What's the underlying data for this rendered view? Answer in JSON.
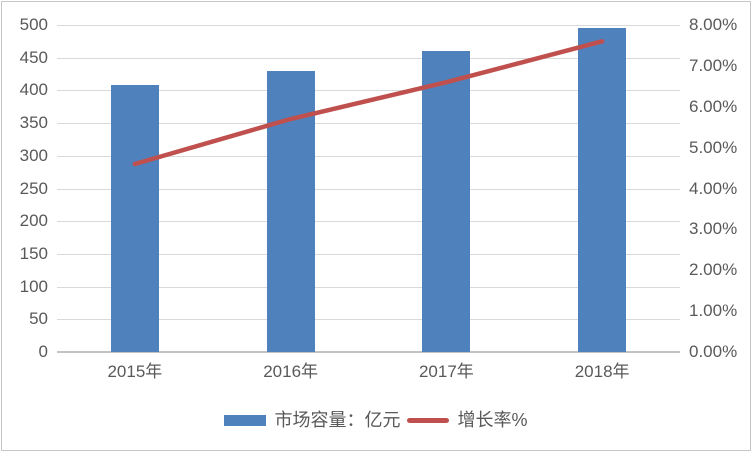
{
  "chart_data": {
    "type": "bar",
    "subtype": "bar-line-combo",
    "title": "",
    "categories": [
      "2015年",
      "2016年",
      "2017年",
      "2018年"
    ],
    "series": [
      {
        "name": "市场容量：亿元",
        "type": "bar",
        "axis": "left",
        "color": "#4F81BD",
        "values": [
          408,
          430,
          460,
          495
        ]
      },
      {
        "name": "增长率%",
        "type": "line",
        "axis": "right",
        "color": "#C0504D",
        "values": [
          4.6,
          5.7,
          6.6,
          7.6
        ]
      }
    ],
    "left_axis": {
      "min": 0,
      "max": 500,
      "step": 50,
      "ticks": [
        "0",
        "50",
        "100",
        "150",
        "200",
        "250",
        "300",
        "350",
        "400",
        "450",
        "500"
      ]
    },
    "right_axis": {
      "min": 0,
      "max": 8,
      "step": 1,
      "ticks": [
        "0.00%",
        "1.00%",
        "2.00%",
        "3.00%",
        "4.00%",
        "5.00%",
        "6.00%",
        "7.00%",
        "8.00%"
      ]
    },
    "grid": "horizontal",
    "legend_position": "bottom",
    "colors": {
      "gridline": "#D9D9D9",
      "axis_line": "#C3C3C3",
      "tick_text": "#595959",
      "background": "#FFFFFF",
      "border": "#C6C6C6"
    }
  }
}
